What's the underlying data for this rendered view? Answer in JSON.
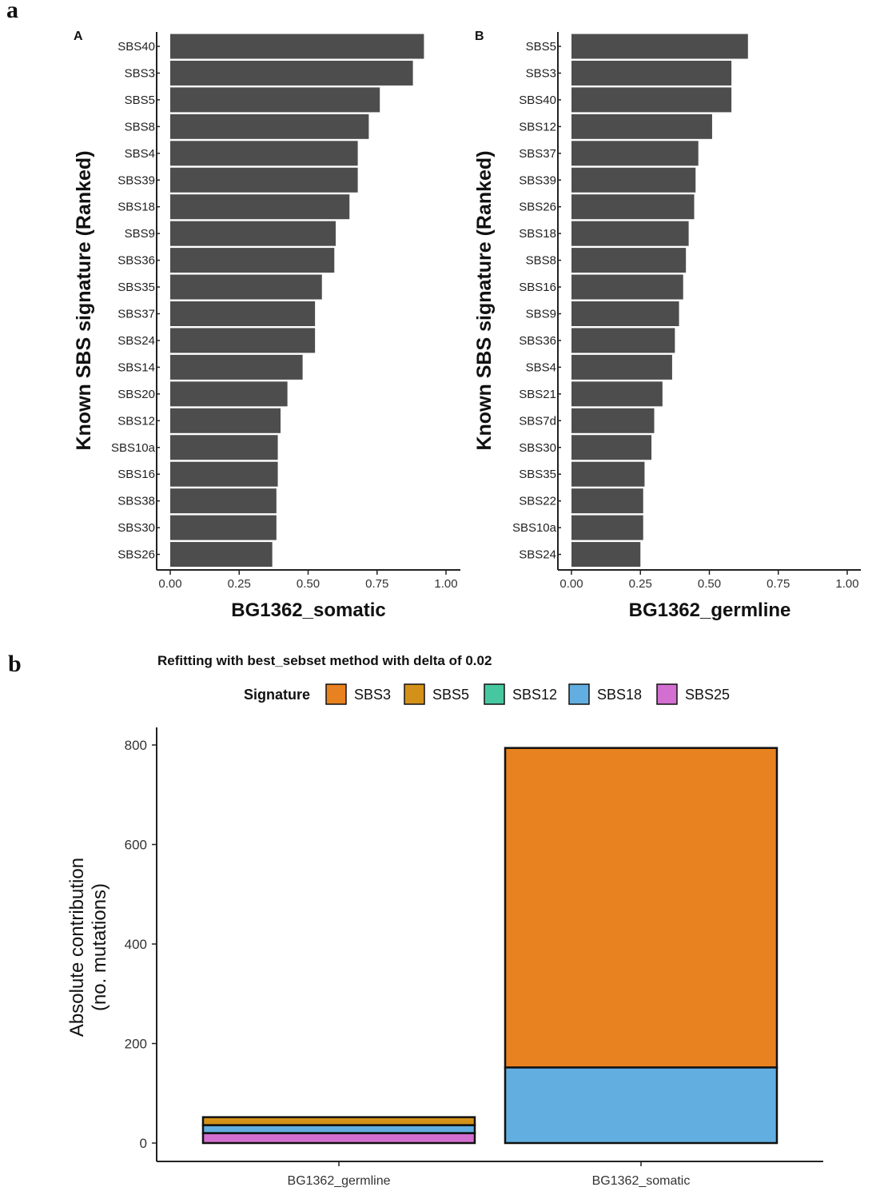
{
  "figure": {
    "panel_a_label": "a",
    "panel_b_label": "b"
  },
  "colors": {
    "bar": "#4d4d4d",
    "SBS3": "#e8811f",
    "SBS5": "#d4911a",
    "SBS12": "#47c7a0",
    "SBS18": "#62aee0",
    "SBS25": "#d36fd0"
  },
  "chart_data": [
    {
      "type": "bar",
      "orientation": "horizontal",
      "panel": "A",
      "categories": [
        "SBS40",
        "SBS3",
        "SBS5",
        "SBS8",
        "SBS4",
        "SBS39",
        "SBS18",
        "SBS9",
        "SBS36",
        "SBS35",
        "SBS37",
        "SBS24",
        "SBS14",
        "SBS20",
        "SBS12",
        "SBS10a",
        "SBS16",
        "SBS38",
        "SBS30",
        "SBS26"
      ],
      "values": [
        0.92,
        0.88,
        0.76,
        0.72,
        0.68,
        0.68,
        0.65,
        0.6,
        0.595,
        0.55,
        0.525,
        0.525,
        0.48,
        0.425,
        0.4,
        0.39,
        0.39,
        0.385,
        0.385,
        0.37
      ],
      "xlabel": "BG1362_somatic",
      "ylabel": "Known SBS signature (Ranked)",
      "xlim": [
        0,
        1.0
      ],
      "xticks": [
        "0.00",
        "0.25",
        "0.50",
        "0.75",
        "1.00"
      ]
    },
    {
      "type": "bar",
      "orientation": "horizontal",
      "panel": "B",
      "categories": [
        "SBS5",
        "SBS3",
        "SBS40",
        "SBS12",
        "SBS37",
        "SBS39",
        "SBS26",
        "SBS18",
        "SBS8",
        "SBS16",
        "SBS9",
        "SBS36",
        "SBS4",
        "SBS21",
        "SBS7d",
        "SBS30",
        "SBS35",
        "SBS22",
        "SBS10a",
        "SBS24"
      ],
      "values": [
        0.64,
        0.58,
        0.58,
        0.51,
        0.46,
        0.45,
        0.445,
        0.425,
        0.415,
        0.405,
        0.39,
        0.375,
        0.365,
        0.33,
        0.3,
        0.29,
        0.265,
        0.26,
        0.26,
        0.25
      ],
      "xlabel": "BG1362_germline",
      "ylabel": "Known SBS signature (Ranked)",
      "xlim": [
        0,
        1.0
      ],
      "xticks": [
        "0.00",
        "0.25",
        "0.50",
        "0.75",
        "1.00"
      ]
    },
    {
      "type": "bar",
      "stacked": true,
      "title": "Refitting with best_sebset method with delta of 0.02",
      "legend_title": "Signature",
      "legend": [
        "SBS3",
        "SBS5",
        "SBS12",
        "SBS18",
        "SBS25"
      ],
      "categories": [
        "BG1362_germline",
        "BG1362_somatic"
      ],
      "series": [
        {
          "name": "SBS3",
          "values": [
            0,
            642
          ]
        },
        {
          "name": "SBS5",
          "values": [
            16,
            0
          ]
        },
        {
          "name": "SBS12",
          "values": [
            0,
            0
          ]
        },
        {
          "name": "SBS18",
          "values": [
            16,
            152
          ]
        },
        {
          "name": "SBS25",
          "values": [
            20,
            0
          ]
        }
      ],
      "ylabel_line1": "Absolute contribution",
      "ylabel_line2": "(no. mutations)",
      "ylim": [
        0,
        800
      ],
      "yticks": [
        "0",
        "200",
        "400",
        "600",
        "800"
      ]
    }
  ]
}
